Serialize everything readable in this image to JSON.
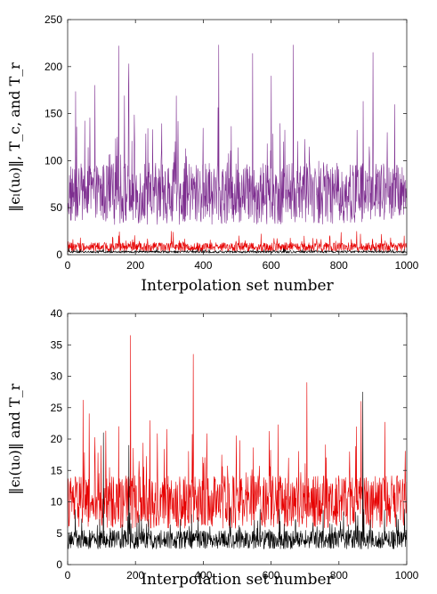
{
  "chart_data": [
    {
      "type": "line",
      "xlabel": "Interpolation set number",
      "ylabel": "‖ϵₗ(u₀)‖, T_c, and T_r",
      "xlim": [
        0,
        1000
      ],
      "ylim": [
        0,
        250
      ],
      "xticks": [
        0,
        200,
        400,
        600,
        800,
        1000
      ],
      "yticks": [
        0,
        50,
        100,
        150,
        200,
        250
      ],
      "grid": false,
      "n_points": 1000,
      "series": [
        {
          "color": "#7d2e8f",
          "baseline": 65,
          "spread": 55,
          "min": 8,
          "max": 225,
          "peaks": [
            [
              150,
              222
            ],
            [
              180,
              203
            ],
            [
              445,
              223
            ],
            [
              545,
              214
            ],
            [
              665,
              223
            ],
            [
              600,
              190
            ],
            [
              900,
              215
            ]
          ]
        },
        {
          "color": "#e60000",
          "baseline": 8,
          "spread": 8,
          "min": 1,
          "max": 25
        },
        {
          "color": "#000000",
          "baseline": 3,
          "spread": 2,
          "min": 0.5,
          "max": 7
        }
      ]
    },
    {
      "type": "line",
      "xlabel": "Interpolation set number",
      "ylabel": "‖ϵₗ(u₀)‖ and T_r",
      "xlim": [
        0,
        1000
      ],
      "ylim": [
        0,
        40
      ],
      "xticks": [
        0,
        200,
        400,
        600,
        800,
        1000
      ],
      "yticks": [
        0,
        5,
        10,
        15,
        20,
        25,
        30,
        35,
        40
      ],
      "grid": false,
      "n_points": 1000,
      "series": [
        {
          "color": "#e60000",
          "baseline": 10,
          "spread": 7,
          "min": 2,
          "max": 37,
          "peaks": [
            [
              185,
              36.5
            ],
            [
              370,
              33.5
            ],
            [
              45,
              26.2
            ],
            [
              705,
              29
            ],
            [
              865,
              26
            ],
            [
              150,
              22
            ]
          ]
        },
        {
          "color": "#000000",
          "baseline": 4,
          "spread": 2.5,
          "min": 1,
          "max": 28,
          "peaks": [
            [
              870,
              27.5
            ],
            [
              105,
              21
            ],
            [
              180,
              19
            ]
          ]
        }
      ]
    }
  ]
}
